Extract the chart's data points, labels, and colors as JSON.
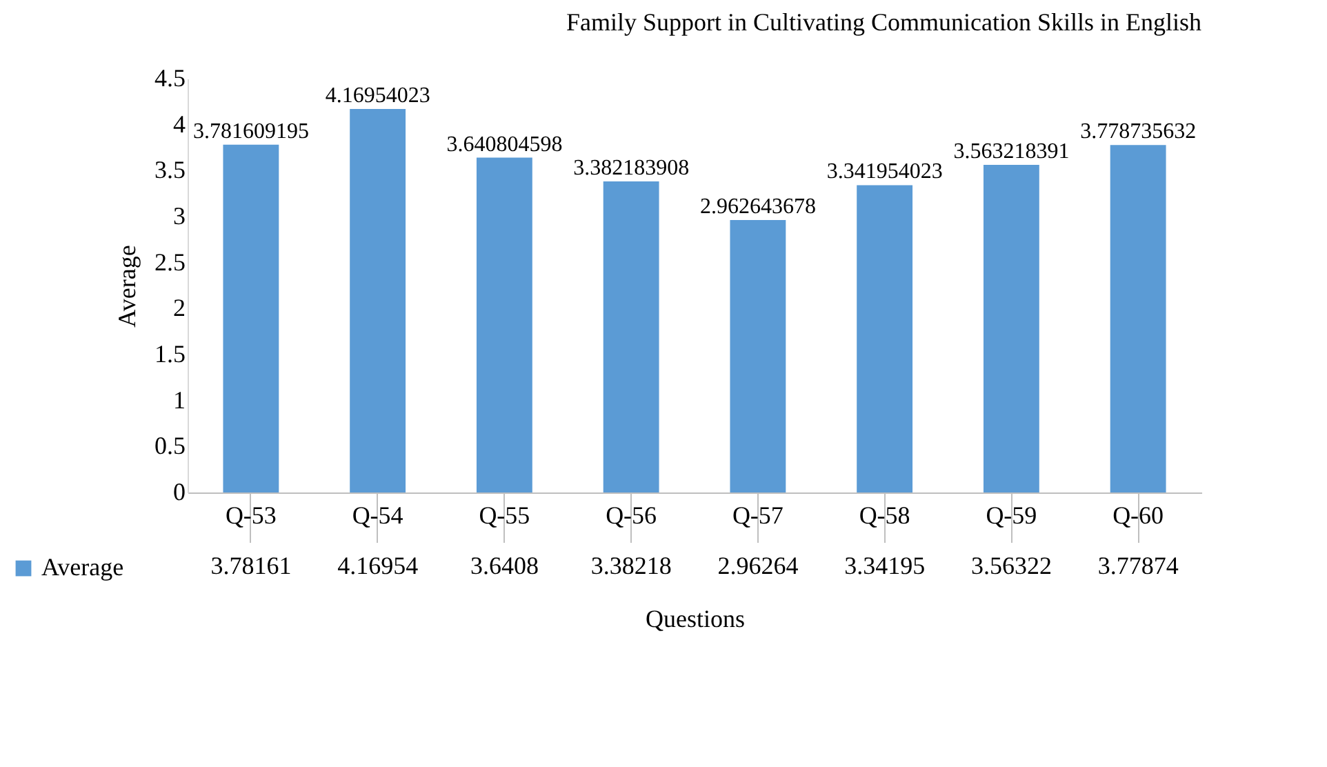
{
  "chart_data": {
    "type": "bar",
    "title": "Family Support in Cultivating Communication Skills in English",
    "xlabel": "Questions",
    "ylabel": "Average",
    "categories": [
      "Q-53",
      "Q-54",
      "Q-55",
      "Q-56",
      "Q-57",
      "Q-58",
      "Q-59",
      "Q-60"
    ],
    "series": [
      {
        "name": "Average",
        "color": "#5b9bd5",
        "values": [
          3.781609195,
          4.16954023,
          3.640804598,
          3.382183908,
          2.962643678,
          3.341954023,
          3.563218391,
          3.778735632
        ],
        "value_labels": [
          "3.78161",
          "4.16954",
          "3.6408",
          "3.38218",
          "2.96264",
          "3.34195",
          "3.56322",
          "3.77874"
        ]
      }
    ],
    "annotations": [
      {
        "text": "3.781609195",
        "x": "Q-53",
        "y": 3.781609195
      },
      {
        "text": "4.16954023",
        "x": "Q-54",
        "y": 4.16954023
      },
      {
        "text": "3.640804598",
        "x": "Q-55",
        "y": 3.640804598
      },
      {
        "text": "3.382183908",
        "x": "Q-56",
        "y": 3.382183908
      },
      {
        "text": "2.962643678",
        "x": "Q-57",
        "y": 2.962643678
      },
      {
        "text": "3.341954023",
        "x": "Q-58",
        "y": 3.341954023
      },
      {
        "text": "3.563218391",
        "x": "Q-59",
        "y": 3.563218391
      },
      {
        "text": "3.778735632",
        "x": "Q-60",
        "y": 3.778735632
      }
    ],
    "ylim": [
      0,
      4.5
    ],
    "yticks": [
      0,
      0.5,
      1,
      1.5,
      2,
      2.5,
      3,
      3.5,
      4,
      4.5
    ],
    "grid": false,
    "legend": "bottom"
  }
}
